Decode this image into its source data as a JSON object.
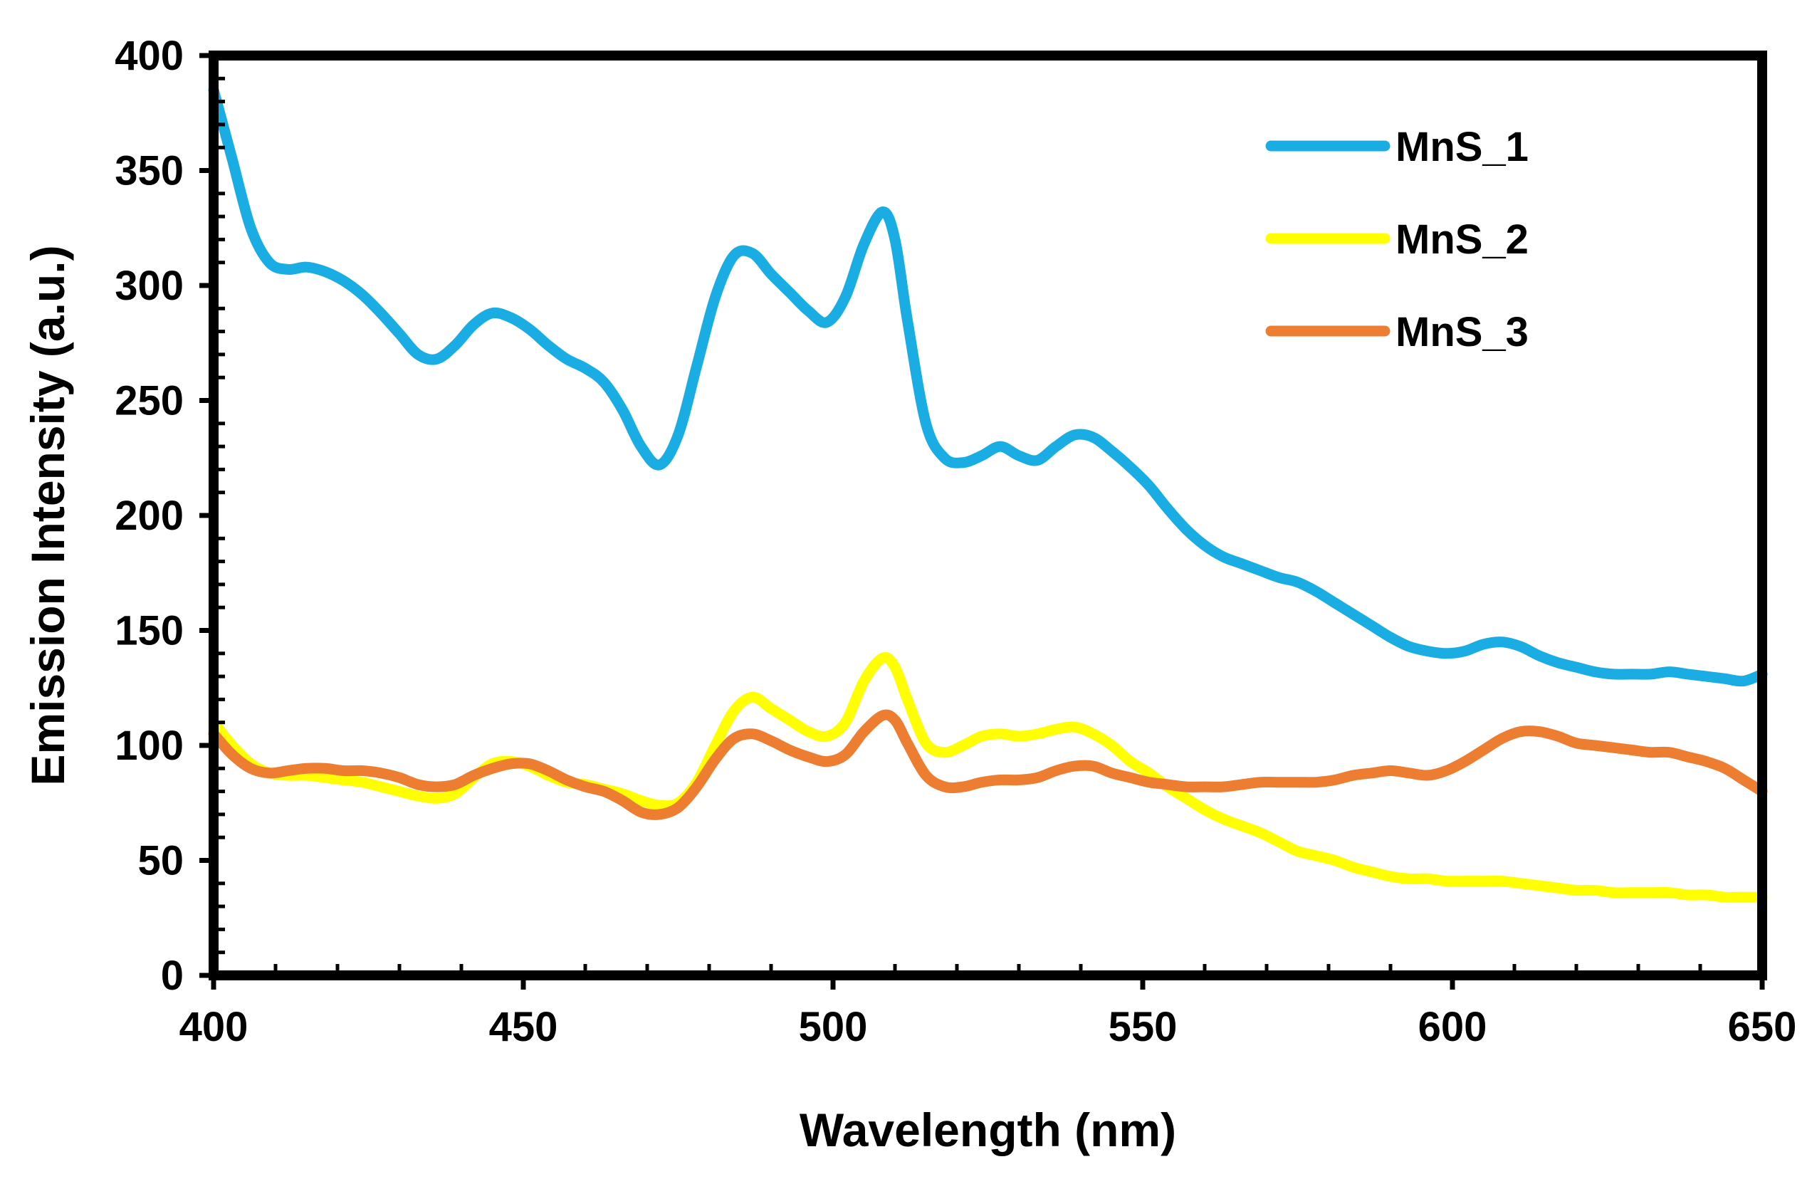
{
  "chart_data": {
    "type": "line",
    "title": "",
    "xlabel": "Wavelength (nm)",
    "ylabel": "Emission Intensity (a.u.)",
    "xlim": [
      400,
      650
    ],
    "ylim": [
      0,
      400
    ],
    "xticks": [
      400,
      450,
      500,
      550,
      600,
      650
    ],
    "yticks": [
      0,
      50,
      100,
      150,
      200,
      250,
      300,
      350,
      400
    ],
    "grid": false,
    "legend_position": "top-right",
    "series": [
      {
        "name": "MnS_1",
        "color": "#1AADE4",
        "x": [
          400,
          403,
          406,
          409,
          412,
          415,
          418,
          421,
          424,
          427,
          430,
          433,
          436,
          439,
          442,
          445,
          448,
          451,
          454,
          457,
          460,
          463,
          466,
          469,
          472,
          475,
          478,
          481,
          484,
          487,
          490,
          493,
          496,
          499,
          502,
          505,
          508,
          510,
          512,
          515,
          518,
          521,
          524,
          527,
          530,
          533,
          536,
          539,
          542,
          545,
          548,
          551,
          554,
          557,
          560,
          563,
          566,
          569,
          572,
          575,
          578,
          581,
          584,
          587,
          590,
          593,
          596,
          599,
          602,
          605,
          608,
          611,
          614,
          617,
          620,
          623,
          626,
          629,
          632,
          635,
          638,
          641,
          644,
          647,
          650
        ],
        "values": [
          385,
          355,
          325,
          310,
          307,
          308,
          306,
          302,
          296,
          288,
          279,
          270,
          268,
          274,
          283,
          288,
          286,
          281,
          274,
          268,
          264,
          258,
          246,
          230,
          222,
          235,
          265,
          295,
          313,
          314,
          305,
          297,
          289,
          284,
          295,
          318,
          332,
          320,
          285,
          240,
          225,
          223,
          226,
          230,
          226,
          224,
          230,
          235,
          234,
          228,
          221,
          213,
          203,
          194,
          187,
          182,
          179,
          176,
          173,
          171,
          167,
          162,
          157,
          152,
          147,
          143,
          141,
          140,
          141,
          144,
          145,
          143,
          139,
          136,
          134,
          132,
          131,
          131,
          131,
          132,
          131,
          130,
          129,
          128,
          131
        ]
      },
      {
        "name": "MnS_2",
        "color": "#FFFF00",
        "x": [
          400,
          403,
          406,
          409,
          412,
          415,
          418,
          421,
          424,
          427,
          430,
          433,
          436,
          439,
          442,
          445,
          448,
          451,
          454,
          457,
          460,
          463,
          466,
          469,
          472,
          475,
          478,
          481,
          484,
          487,
          490,
          493,
          496,
          499,
          502,
          505,
          508,
          510,
          512,
          515,
          518,
          521,
          524,
          527,
          530,
          533,
          536,
          539,
          542,
          545,
          548,
          551,
          554,
          557,
          560,
          563,
          566,
          569,
          572,
          575,
          578,
          581,
          584,
          587,
          590,
          593,
          596,
          599,
          602,
          605,
          608,
          611,
          614,
          617,
          620,
          623,
          626,
          629,
          632,
          635,
          638,
          641,
          644,
          647,
          650
        ],
        "values": [
          110,
          100,
          92,
          88,
          87,
          87,
          86,
          85,
          84,
          82,
          80,
          78,
          77,
          79,
          86,
          92,
          93,
          91,
          87,
          84,
          83,
          81,
          79,
          76,
          74,
          75,
          84,
          100,
          115,
          121,
          116,
          111,
          106,
          104,
          110,
          128,
          138,
          134,
          120,
          101,
          97,
          100,
          104,
          105,
          104,
          105,
          107,
          108,
          105,
          100,
          93,
          88,
          82,
          77,
          72,
          68,
          65,
          62,
          58,
          54,
          52,
          50,
          47,
          45,
          43,
          42,
          42,
          41,
          41,
          41,
          41,
          40,
          39,
          38,
          37,
          37,
          36,
          36,
          36,
          36,
          35,
          35,
          34,
          34,
          34
        ]
      },
      {
        "name": "MnS_3",
        "color": "#ED7D31",
        "x": [
          400,
          403,
          406,
          409,
          412,
          415,
          418,
          421,
          424,
          427,
          430,
          433,
          436,
          439,
          442,
          445,
          448,
          451,
          454,
          457,
          460,
          463,
          466,
          469,
          472,
          475,
          478,
          481,
          484,
          487,
          490,
          493,
          496,
          499,
          502,
          505,
          508,
          510,
          512,
          515,
          518,
          521,
          524,
          527,
          530,
          533,
          536,
          539,
          542,
          545,
          548,
          551,
          554,
          557,
          560,
          563,
          566,
          569,
          572,
          575,
          578,
          581,
          584,
          587,
          590,
          593,
          596,
          599,
          602,
          605,
          608,
          611,
          614,
          617,
          620,
          623,
          626,
          629,
          632,
          635,
          638,
          641,
          644,
          647,
          650
        ],
        "values": [
          105,
          96,
          90,
          88,
          89,
          90,
          90,
          89,
          89,
          88,
          86,
          83,
          82,
          83,
          87,
          90,
          92,
          92,
          89,
          85,
          82,
          80,
          76,
          71,
          70,
          73,
          82,
          94,
          103,
          105,
          102,
          98,
          95,
          93,
          96,
          106,
          113,
          111,
          101,
          87,
          82,
          82,
          84,
          85,
          85,
          86,
          89,
          91,
          91,
          88,
          86,
          84,
          83,
          82,
          82,
          82,
          83,
          84,
          84,
          84,
          84,
          85,
          87,
          88,
          89,
          88,
          87,
          89,
          93,
          98,
          103,
          106,
          106,
          104,
          101,
          100,
          99,
          98,
          97,
          97,
          95,
          93,
          90,
          85,
          80
        ]
      }
    ]
  }
}
